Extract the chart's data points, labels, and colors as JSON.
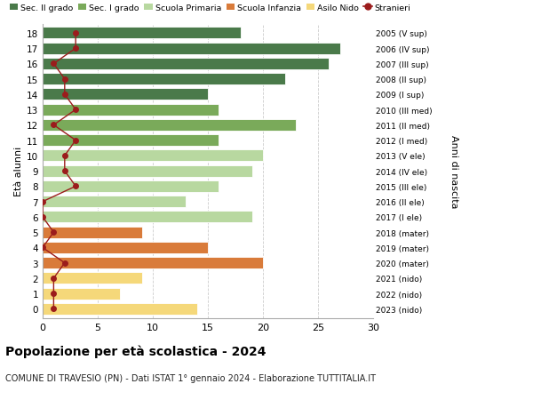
{
  "ages": [
    18,
    17,
    16,
    15,
    14,
    13,
    12,
    11,
    10,
    9,
    8,
    7,
    6,
    5,
    4,
    3,
    2,
    1,
    0
  ],
  "right_labels": [
    "2005 (V sup)",
    "2006 (IV sup)",
    "2007 (III sup)",
    "2008 (II sup)",
    "2009 (I sup)",
    "2010 (III med)",
    "2011 (II med)",
    "2012 (I med)",
    "2013 (V ele)",
    "2014 (IV ele)",
    "2015 (III ele)",
    "2016 (II ele)",
    "2017 (I ele)",
    "2018 (mater)",
    "2019 (mater)",
    "2020 (mater)",
    "2021 (nido)",
    "2022 (nido)",
    "2023 (nido)"
  ],
  "bar_values": [
    18,
    27,
    26,
    22,
    15,
    16,
    23,
    16,
    20,
    19,
    16,
    13,
    19,
    9,
    15,
    20,
    9,
    7,
    14
  ],
  "bar_colors": [
    "#4a7a4a",
    "#4a7a4a",
    "#4a7a4a",
    "#4a7a4a",
    "#4a7a4a",
    "#7aaa5a",
    "#7aaa5a",
    "#7aaa5a",
    "#b8d8a0",
    "#b8d8a0",
    "#b8d8a0",
    "#b8d8a0",
    "#b8d8a0",
    "#d97b3a",
    "#d97b3a",
    "#d97b3a",
    "#f5d87a",
    "#f5d87a",
    "#f5d87a"
  ],
  "stranieri_values": [
    3,
    3,
    1,
    2,
    2,
    3,
    1,
    3,
    2,
    2,
    3,
    0,
    0,
    1,
    0,
    2,
    1,
    1,
    1
  ],
  "stranieri_color": "#9b1c1c",
  "legend_labels": [
    "Sec. II grado",
    "Sec. I grado",
    "Scuola Primaria",
    "Scuola Infanzia",
    "Asilo Nido",
    "Stranieri"
  ],
  "legend_colors": [
    "#4a7a4a",
    "#7aaa5a",
    "#b8d8a0",
    "#d97b3a",
    "#f5d87a",
    "#9b1c1c"
  ],
  "ylabel_left": "Età alunni",
  "ylabel_right": "Anni di nascita",
  "xlim": [
    0,
    30
  ],
  "xticks": [
    0,
    5,
    10,
    15,
    20,
    25,
    30
  ],
  "title": "Popolazione per età scolastica - 2024",
  "subtitle": "COMUNE DI TRAVESIO (PN) - Dati ISTAT 1° gennaio 2024 - Elaborazione TUTTITALIA.IT",
  "bg_color": "#ffffff",
  "grid_color": "#cccccc"
}
